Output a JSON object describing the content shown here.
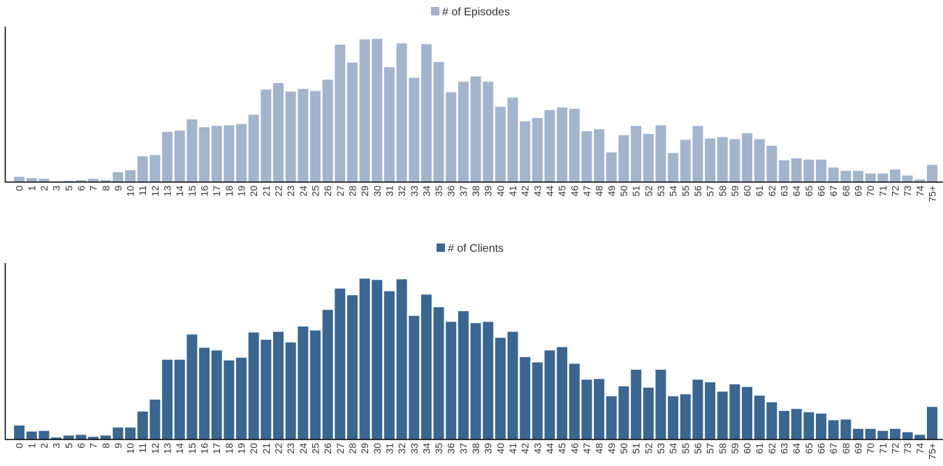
{
  "colors": {
    "episodes": "#a3b4cd",
    "clients": "#3a6690",
    "axis": "#000000",
    "text": "#333333"
  },
  "chart_data": [
    {
      "type": "bar",
      "legend": "top-center",
      "grid": false,
      "categories": [
        "0",
        "1",
        "2",
        "3",
        "5",
        "6",
        "7",
        "8",
        "9",
        "10",
        "11",
        "12",
        "13",
        "14",
        "15",
        "16",
        "17",
        "18",
        "19",
        "20",
        "21",
        "22",
        "23",
        "24",
        "25",
        "26",
        "27",
        "28",
        "29",
        "30",
        "31",
        "32",
        "33",
        "34",
        "35",
        "36",
        "37",
        "38",
        "39",
        "40",
        "41",
        "42",
        "43",
        "44",
        "45",
        "46",
        "47",
        "48",
        "49",
        "50",
        "51",
        "52",
        "53",
        "54",
        "55",
        "56",
        "57",
        "58",
        "59",
        "60",
        "61",
        "62",
        "63",
        "64",
        "65",
        "66",
        "67",
        "68",
        "69",
        "70",
        "71",
        "72",
        "73",
        "74",
        "75+"
      ],
      "series": [
        {
          "name": "# of Episodes",
          "values": [
            8,
            6,
            5,
            1,
            2,
            3,
            5,
            3,
            15,
            18,
            39,
            41,
            76,
            78,
            95,
            83,
            85,
            86,
            88,
            102,
            140,
            150,
            137,
            141,
            138,
            155,
            208,
            181,
            216,
            217,
            174,
            210,
            158,
            209,
            182,
            136,
            152,
            160,
            152,
            114,
            128,
            92,
            97,
            109,
            113,
            111,
            77,
            80,
            45,
            71,
            85,
            73,
            86,
            44,
            64,
            85,
            66,
            68,
            65,
            74,
            65,
            55,
            33,
            36,
            34,
            34,
            22,
            17,
            17,
            13,
            13,
            19,
            10,
            4,
            26
          ]
        }
      ],
      "ylim": [
        0,
        225
      ]
    },
    {
      "type": "bar",
      "legend": "top-center",
      "grid": false,
      "categories": [
        "0",
        "1",
        "2",
        "3",
        "5",
        "6",
        "7",
        "8",
        "9",
        "10",
        "11",
        "12",
        "13",
        "14",
        "15",
        "16",
        "17",
        "18",
        "19",
        "20",
        "21",
        "22",
        "23",
        "24",
        "25",
        "26",
        "27",
        "28",
        "29",
        "30",
        "31",
        "32",
        "33",
        "34",
        "35",
        "36",
        "37",
        "38",
        "39",
        "40",
        "41",
        "42",
        "43",
        "44",
        "45",
        "46",
        "47",
        "48",
        "49",
        "50",
        "51",
        "52",
        "53",
        "54",
        "55",
        "56",
        "57",
        "58",
        "59",
        "60",
        "61",
        "62",
        "63",
        "64",
        "65",
        "66",
        "67",
        "68",
        "69",
        "70",
        "71",
        "72",
        "73",
        "74",
        "75+"
      ],
      "series": [
        {
          "name": "# of Clients",
          "values": [
            21,
            12,
            13,
            3,
            6,
            7,
            4,
            6,
            18,
            18,
            42,
            60,
            120,
            120,
            158,
            138,
            134,
            119,
            123,
            161,
            150,
            162,
            146,
            170,
            164,
            195,
            227,
            217,
            242,
            240,
            223,
            241,
            186,
            218,
            199,
            177,
            193,
            175,
            177,
            153,
            162,
            124,
            116,
            134,
            139,
            114,
            90,
            91,
            65,
            80,
            105,
            78,
            105,
            65,
            68,
            90,
            86,
            72,
            83,
            79,
            66,
            56,
            43,
            46,
            41,
            39,
            29,
            30,
            16,
            16,
            13,
            16,
            11,
            7,
            49
          ]
        }
      ],
      "ylim": [
        0,
        255
      ]
    }
  ]
}
